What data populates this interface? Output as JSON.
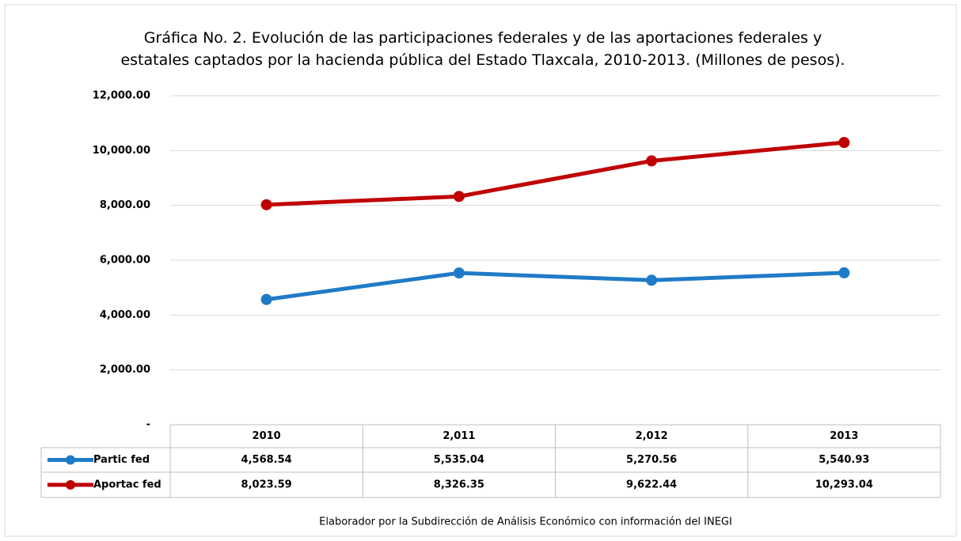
{
  "chart_data": {
    "type": "line",
    "title": "Gráfica No. 2. Evolución de las participaciones federales y de las aportaciones federales y estatales captados por la hacienda pública del Estado Tlaxcala, 2010-2013. (Millones de pesos).",
    "categories": [
      "2010",
      "2,011",
      "2,012",
      "2013"
    ],
    "series": [
      {
        "name": "Partic fed",
        "color": "#1f7bc6",
        "values": [
          4568.54,
          5535.04,
          5270.56,
          5540.93
        ],
        "value_labels": [
          "4,568.54",
          "5,535.04",
          "5,270.56",
          "5,540.93"
        ]
      },
      {
        "name": "Aportac fed",
        "color": "#c00000",
        "values": [
          8023.59,
          8326.35,
          9622.44,
          10293.04
        ],
        "value_labels": [
          "8,023.59",
          "8,326.35",
          "9,622.44",
          "10,293.04"
        ]
      }
    ],
    "ylim": [
      0,
      12000
    ],
    "yticks": [
      {
        "value": 0,
        "label": "-"
      },
      {
        "value": 2000,
        "label": "2,000.00"
      },
      {
        "value": 4000,
        "label": "4,000.00"
      },
      {
        "value": 6000,
        "label": "6,000.00"
      },
      {
        "value": 8000,
        "label": "8,000.00"
      },
      {
        "value": 10000,
        "label": "10,000.00"
      },
      {
        "value": 12000,
        "label": "12,000.00"
      }
    ],
    "grid": true,
    "source": "Elaborador por la Subdirección de Análisis Económico con información del INEGI"
  }
}
